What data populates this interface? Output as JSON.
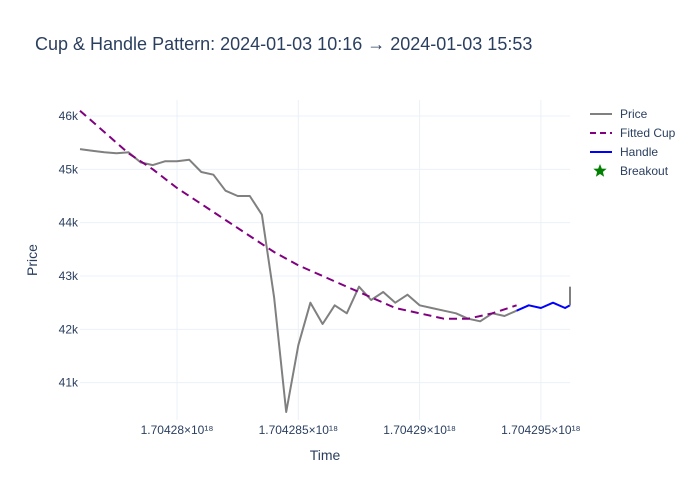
{
  "chart_data": {
    "type": "line",
    "title": "Cup & Handle Pattern: 2024-01-03 10:16 → 2024-01-03 15:53",
    "xlabel": "Time",
    "ylabel": "Price",
    "xlim": [
      1.704276e+18,
      1.7042962e+18
    ],
    "ylim": [
      40300,
      46300
    ],
    "x_ticks": [
      {
        "value": 1.70428e+18,
        "label": "1.70428×10¹⁸"
      },
      {
        "value": 1.704285e+18,
        "label": "1.704285×10¹⁸"
      },
      {
        "value": 1.70429e+18,
        "label": "1.70429×10¹⁸"
      },
      {
        "value": 1.704295e+18,
        "label": "1.704295×10¹⁸"
      }
    ],
    "y_ticks": [
      {
        "value": 41000,
        "label": "41k"
      },
      {
        "value": 42000,
        "label": "42k"
      },
      {
        "value": 43000,
        "label": "43k"
      },
      {
        "value": 44000,
        "label": "44k"
      },
      {
        "value": 45000,
        "label": "45k"
      },
      {
        "value": 46000,
        "label": "46k"
      }
    ],
    "grid": true,
    "legend_position": "top-right",
    "series": [
      {
        "name": "Price",
        "style": "solid",
        "color": "#808080",
        "x": [
          1.704276e+18,
          1.7042765e+18,
          1.704277e+18,
          1.7042775e+18,
          1.704278e+18,
          1.7042785e+18,
          1.704279e+18,
          1.7042795e+18,
          1.70428e+18,
          1.7042805e+18,
          1.704281e+18,
          1.7042815e+18,
          1.704282e+18,
          1.7042825e+18,
          1.704283e+18,
          1.7042835e+18,
          1.704284e+18,
          1.7042845e+18,
          1.704285e+18,
          1.7042855e+18,
          1.704286e+18,
          1.7042865e+18,
          1.704287e+18,
          1.7042875e+18,
          1.704288e+18,
          1.7042885e+18,
          1.704289e+18,
          1.7042895e+18,
          1.70429e+18,
          1.7042905e+18,
          1.704291e+18,
          1.7042915e+18,
          1.704292e+18,
          1.7042925e+18,
          1.704293e+18,
          1.7042935e+18,
          1.704294e+18
        ],
        "values": [
          45380,
          45350,
          45320,
          45300,
          45320,
          45130,
          45080,
          45150,
          45150,
          45180,
          44950,
          44900,
          44600,
          44500,
          44500,
          44150,
          42600,
          40450,
          41700,
          42500,
          42100,
          42450,
          42300,
          42800,
          42550,
          42700,
          42500,
          42650,
          42450,
          42400,
          42350,
          42300,
          42200,
          42150,
          42300,
          42250,
          42350
        ]
      },
      {
        "name": "Fitted Cup",
        "style": "dash",
        "color": "#800080",
        "x": [
          1.704276e+18,
          1.704277e+18,
          1.704278e+18,
          1.704279e+18,
          1.70428e+18,
          1.704281e+18,
          1.704282e+18,
          1.704283e+18,
          1.704284e+18,
          1.704285e+18,
          1.704286e+18,
          1.704287e+18,
          1.704288e+18,
          1.704289e+18,
          1.70429e+18,
          1.704291e+18,
          1.704292e+18,
          1.704293e+18,
          1.704294e+18
        ],
        "values": [
          46100,
          45700,
          45300,
          45000,
          44650,
          44350,
          44050,
          43750,
          43450,
          43200,
          43000,
          42800,
          42600,
          42400,
          42300,
          42200,
          42200,
          42300,
          42450
        ]
      },
      {
        "name": "Handle",
        "style": "solid",
        "color": "#0000ff",
        "x": [
          1.704294e+18,
          1.7042945e+18,
          1.704295e+18,
          1.7042955e+18,
          1.704296e+18,
          1.7042962e+18
        ],
        "values": [
          42350,
          42450,
          42400,
          42500,
          42400,
          42450
        ]
      },
      {
        "name": "Breakout",
        "style": "marker-star",
        "color": "#008000",
        "x": [],
        "values": []
      }
    ],
    "end_spike": {
      "x": [
        1.7042962e+18,
        1.7042962e+18
      ],
      "values": [
        42450,
        42800
      ]
    }
  }
}
